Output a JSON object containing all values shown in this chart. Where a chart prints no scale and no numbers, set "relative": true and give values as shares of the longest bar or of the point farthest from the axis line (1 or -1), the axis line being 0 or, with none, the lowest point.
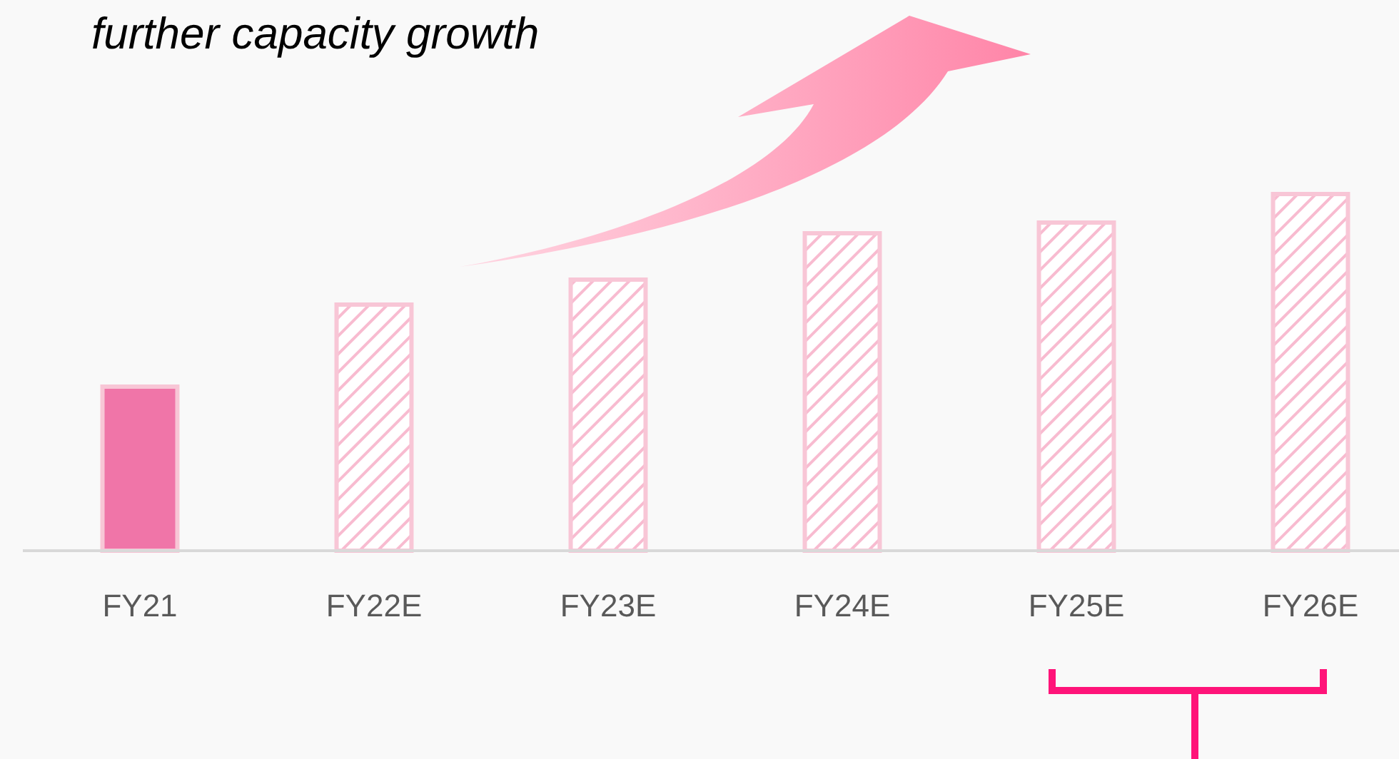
{
  "chart_data": {
    "type": "bar",
    "title": "further capacity growth",
    "relative": true,
    "categories": [
      "FY21",
      "FY22E",
      "FY23E",
      "FY24E",
      "FY25E",
      "FY26E"
    ],
    "values": [
      0.46,
      0.69,
      0.76,
      0.89,
      0.92,
      1
    ],
    "colors": [
      "#f075a8",
      "#f8bbd0",
      "#f8bbd0",
      "#f8bbd0",
      "#f8bbd0",
      "#f8bbd0"
    ]
  }
}
